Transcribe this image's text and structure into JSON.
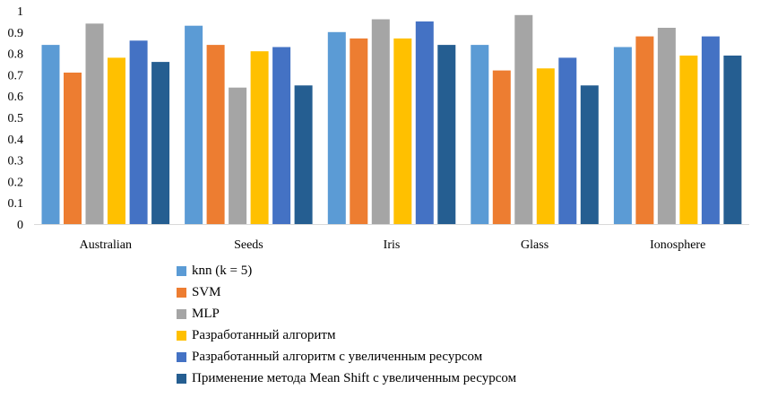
{
  "chart_data": {
    "type": "bar",
    "categories": [
      "Australian",
      "Seeds",
      "Iris",
      "Glass",
      "Ionosphere"
    ],
    "series": [
      {
        "name": "knn (k = 5)",
        "color": "#5b9bd5",
        "values": [
          0.84,
          0.93,
          0.9,
          0.84,
          0.83
        ]
      },
      {
        "name": "SVM",
        "color": "#ed7d31",
        "values": [
          0.71,
          0.84,
          0.87,
          0.72,
          0.88
        ]
      },
      {
        "name": "MLP",
        "color": "#a5a5a5",
        "values": [
          0.94,
          0.64,
          0.96,
          0.98,
          0.92
        ]
      },
      {
        "name": "Разработанный алгоритм",
        "color": "#ffc000",
        "values": [
          0.78,
          0.81,
          0.87,
          0.73,
          0.79
        ]
      },
      {
        "name": "Разработанный алгоритм с увеличенным ресурсом",
        "color": "#4472c4",
        "values": [
          0.86,
          0.83,
          0.95,
          0.78,
          0.88
        ]
      },
      {
        "name": "Применение метода Mean Shift с увеличенным ресурсом",
        "color": "#255e91",
        "values": [
          0.76,
          0.65,
          0.84,
          0.65,
          0.79
        ]
      }
    ],
    "yticks": [
      "0",
      "0.1",
      "0.2",
      "0.3",
      "0.4",
      "0.5",
      "0.6",
      "0.7",
      "0.8",
      "0.9",
      "1"
    ],
    "ylim": [
      0,
      1
    ],
    "grid": false,
    "legend_position": "bottom",
    "title": "",
    "xlabel": "",
    "ylabel": ""
  }
}
